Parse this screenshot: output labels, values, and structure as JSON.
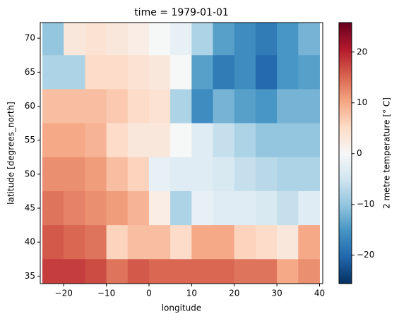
{
  "chart_data": {
    "type": "heatmap",
    "title": "time = 1979-01-01",
    "xlabel": "longitude",
    "ylabel": "latitude [degrees_north]",
    "colorbar_label": "2 metre temperature [° C]",
    "xlim": [
      -25.5,
      40.75
    ],
    "ylim": [
      33.9,
      72.3
    ],
    "xticks": [
      {
        "value": -20,
        "label": "−20"
      },
      {
        "value": -10,
        "label": "−10"
      },
      0,
      10,
      20,
      30,
      40
    ],
    "yticks": [
      35,
      40,
      45,
      50,
      55,
      60,
      65,
      70
    ],
    "clim": [
      -25.6,
      25.8
    ],
    "colorbar_ticks": [
      {
        "value": -20,
        "label": "−20"
      },
      {
        "value": -10,
        "label": "−10"
      },
      0,
      10,
      20
    ],
    "colors": [
      "#053061",
      "#2166ac",
      "#4393c3",
      "#92c5de",
      "#d1e5f0",
      "#f7f7f7",
      "#fddbc7",
      "#f4a582",
      "#d6604d",
      "#b2182b",
      "#67001f"
    ],
    "x": [
      -22.5,
      -17.5,
      -12.5,
      -7.5,
      -2.5,
      2.5,
      7.5,
      12.5,
      17.5,
      22.5,
      27.5,
      32.5,
      37.5
    ],
    "y": [
      70,
      65,
      60,
      55,
      50,
      45,
      40,
      35
    ],
    "z": [
      [
        -10,
        3,
        4,
        3,
        2,
        0,
        -2,
        -8,
        -14,
        -16,
        -18,
        -15,
        -12
      ],
      [
        -8,
        -8,
        5,
        5,
        4,
        3,
        0,
        -14,
        -18,
        -16,
        -20,
        -15,
        -14
      ],
      [
        8,
        8,
        8,
        7,
        5,
        4,
        -8,
        -16,
        -12,
        -14,
        -15,
        -12,
        -12
      ],
      [
        10,
        10,
        9,
        5,
        3,
        3,
        0,
        -3,
        -6,
        -8,
        -10,
        -10,
        -10
      ],
      [
        12,
        12,
        11,
        8,
        6,
        -2,
        -3,
        -3,
        -4,
        -6,
        -7,
        -8,
        -8
      ],
      [
        14,
        13,
        12,
        11,
        9,
        2,
        -8,
        -2,
        -3,
        -3,
        -4,
        -6,
        -3
      ],
      [
        16,
        15,
        14,
        6,
        8,
        8,
        5,
        10,
        10,
        6,
        5,
        3,
        10
      ],
      [
        18,
        18,
        17,
        14,
        16,
        15,
        15,
        15,
        15,
        14,
        14,
        10,
        12
      ]
    ]
  }
}
